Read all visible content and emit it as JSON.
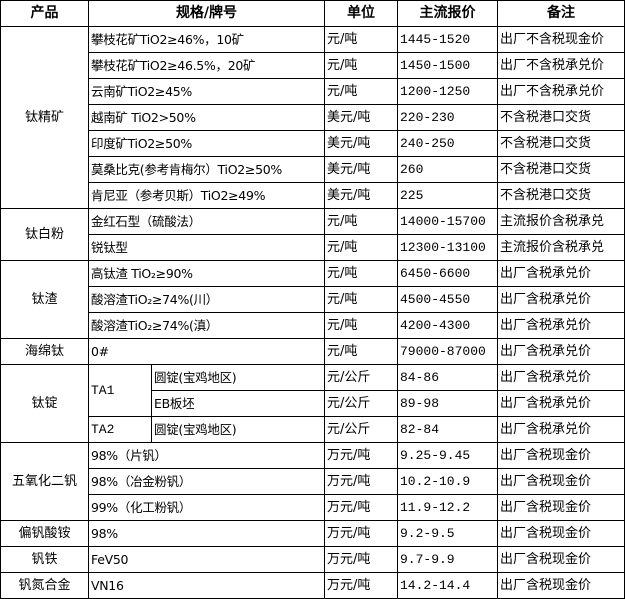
{
  "headers": {
    "product": "产品",
    "spec": "规格/牌号",
    "unit": "单位",
    "price": "主流报价",
    "note": "备注"
  },
  "products": [
    {
      "name": "钛精矿",
      "rows": [
        {
          "spec": "攀枝花矿TiO2≥46%，10矿",
          "unit": "元/吨",
          "price": "1445-1520",
          "note": "出厂不含税现金价"
        },
        {
          "spec": "攀枝花矿TiO2≥46.5%，20矿",
          "unit": "元/吨",
          "price": "1450-1500",
          "note": "出厂不含税承兑价"
        },
        {
          "spec": "云南矿TiO2≥45%",
          "unit": "元/吨",
          "price": "1200-1250",
          "note": "出厂不含税承兑价"
        },
        {
          "spec": "越南矿 TiO2>50%",
          "unit": "美元/吨",
          "price": "220-230",
          "note": "不含税港口交货"
        },
        {
          "spec": "印度矿TiO2≥50%",
          "unit": "美元/吨",
          "price": "240-250",
          "note": "不含税港口交货"
        },
        {
          "spec": "莫桑比克(参考肯梅尔）TiO2≥50%",
          "unit": "美元/吨",
          "price": "260",
          "note": "不含税港口交货"
        },
        {
          "spec": "肯尼亚（参考贝斯）TiO2≥49%",
          "unit": "美元/吨",
          "price": "225",
          "note": "不含税港口交货"
        }
      ]
    },
    {
      "name": "钛白粉",
      "rows": [
        {
          "spec": "金红石型（硫酸法）",
          "unit": "元/吨",
          "price": "14000-15700",
          "note": "主流报价含税承兑"
        },
        {
          "spec": "锐钛型",
          "unit": "元/吨",
          "price": "12300-13100",
          "note": "主流报价含税承兑"
        }
      ]
    },
    {
      "name": "钛渣",
      "rows": [
        {
          "spec": "高钛渣 TiO₂≥90%",
          "unit": "元/吨",
          "price": "6450-6600",
          "note": "出厂含税承兑价"
        },
        {
          "spec": "酸溶渣TiO₂≥74%(川）",
          "unit": "元/吨",
          "price": "4500-4550",
          "note": "出厂含税承兑价"
        },
        {
          "spec": "酸溶渣TiO₂≥74%(滇）",
          "unit": "元/吨",
          "price": "4200-4300",
          "note": "出厂含税承兑价"
        }
      ]
    },
    {
      "name": "海绵钛",
      "rows": [
        {
          "spec": "0#",
          "unit": "元/吨",
          "price": "79000-87000",
          "note": "出厂含税承兑价"
        }
      ]
    },
    {
      "name": "钛锭",
      "grades": [
        {
          "grade": "TA1",
          "rows": [
            {
              "spec": "圆锭(宝鸡地区)",
              "unit": "元/公斤",
              "price": "84-86",
              "note": "出厂含税承兑价"
            },
            {
              "spec": "EB板坯",
              "unit": "元/公斤",
              "price": "89-98",
              "note": "出厂含税承兑价"
            }
          ]
        },
        {
          "grade": "TA2",
          "rows": [
            {
              "spec": "圆锭(宝鸡地区)",
              "unit": "元/公斤",
              "price": "82-84",
              "note": "出厂含税承兑价"
            }
          ]
        }
      ]
    },
    {
      "name": "五氧化二钒",
      "rows": [
        {
          "spec": "98%（片钒）",
          "unit": "万元/吨",
          "price": "9.25-9.45",
          "note": "出厂含税现金价"
        },
        {
          "spec": "98%（冶金粉钒）",
          "unit": "万元/吨",
          "price": "10.2-10.9",
          "note": "出厂含税现金价"
        },
        {
          "spec": "99%（化工粉钒）",
          "unit": "万元/吨",
          "price": "11.9-12.2",
          "note": "出厂含税现金价"
        }
      ]
    },
    {
      "name": "偏钒酸铵",
      "rows": [
        {
          "spec": "98%",
          "unit": "万元/吨",
          "price": "9.2-9.5",
          "note": "出厂含税现金价"
        }
      ]
    },
    {
      "name": "钒铁",
      "rows": [
        {
          "spec": "FeV50",
          "unit": "万元/吨",
          "price": "9.7-9.9",
          "note": "出厂含税现金价"
        }
      ]
    },
    {
      "name": "钒氮合金",
      "rows": [
        {
          "spec": "VN16",
          "unit": "万元/吨",
          "price": "14.2-14.4",
          "note": "出厂含税现金价"
        }
      ]
    }
  ]
}
